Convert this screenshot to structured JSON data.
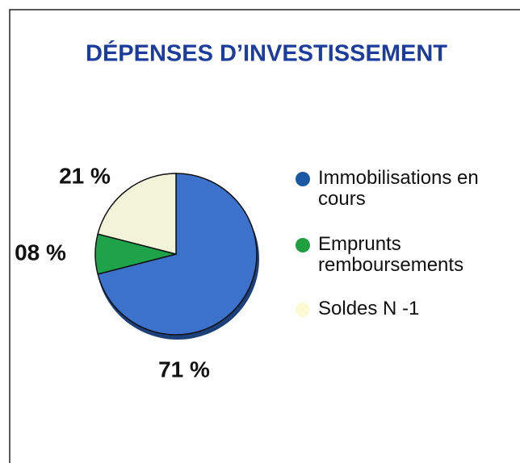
{
  "chart_data": {
    "type": "pie",
    "title": "DÉPENSES D’INVESTISSEMENT",
    "categories": [
      "Immobilisations en cours",
      "Emprunts remboursements",
      "Soldes N -1"
    ],
    "values": [
      71,
      8,
      21
    ],
    "value_labels": [
      "71 %",
      "08 %",
      "21 %"
    ],
    "colors": [
      "#3d72cc",
      "#1ea34a",
      "#f1f4d9"
    ],
    "legend_colors": [
      "#1b58a3",
      "#1f9f3f",
      "#fbfad2"
    ]
  }
}
